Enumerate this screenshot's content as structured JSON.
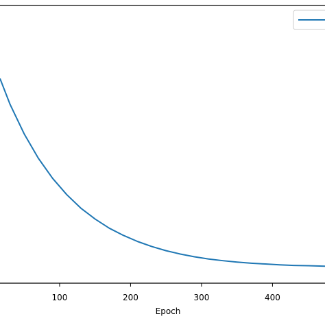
{
  "chart_data": {
    "type": "line",
    "title": "",
    "xlabel": "Epoch",
    "ylabel": "",
    "xlim": [
      16,
      474
    ],
    "ylim": [
      0,
      1
    ],
    "x_ticks": [
      100,
      200,
      300,
      400
    ],
    "grid": false,
    "legend": {
      "position": "top-right",
      "entries": [
        ""
      ]
    },
    "colors": {
      "series": "#1f77b4",
      "axes": "#000000"
    },
    "series": [
      {
        "x": [
          16,
          30,
          50,
          70,
          90,
          110,
          130,
          150,
          170,
          190,
          210,
          230,
          250,
          270,
          290,
          310,
          330,
          350,
          370,
          390,
          410,
          430,
          450,
          474
        ],
        "y": [
          0.737,
          0.645,
          0.538,
          0.45,
          0.378,
          0.319,
          0.27,
          0.231,
          0.198,
          0.172,
          0.15,
          0.132,
          0.117,
          0.105,
          0.095,
          0.087,
          0.081,
          0.076,
          0.072,
          0.069,
          0.066,
          0.064,
          0.063,
          0.061
        ]
      }
    ]
  }
}
